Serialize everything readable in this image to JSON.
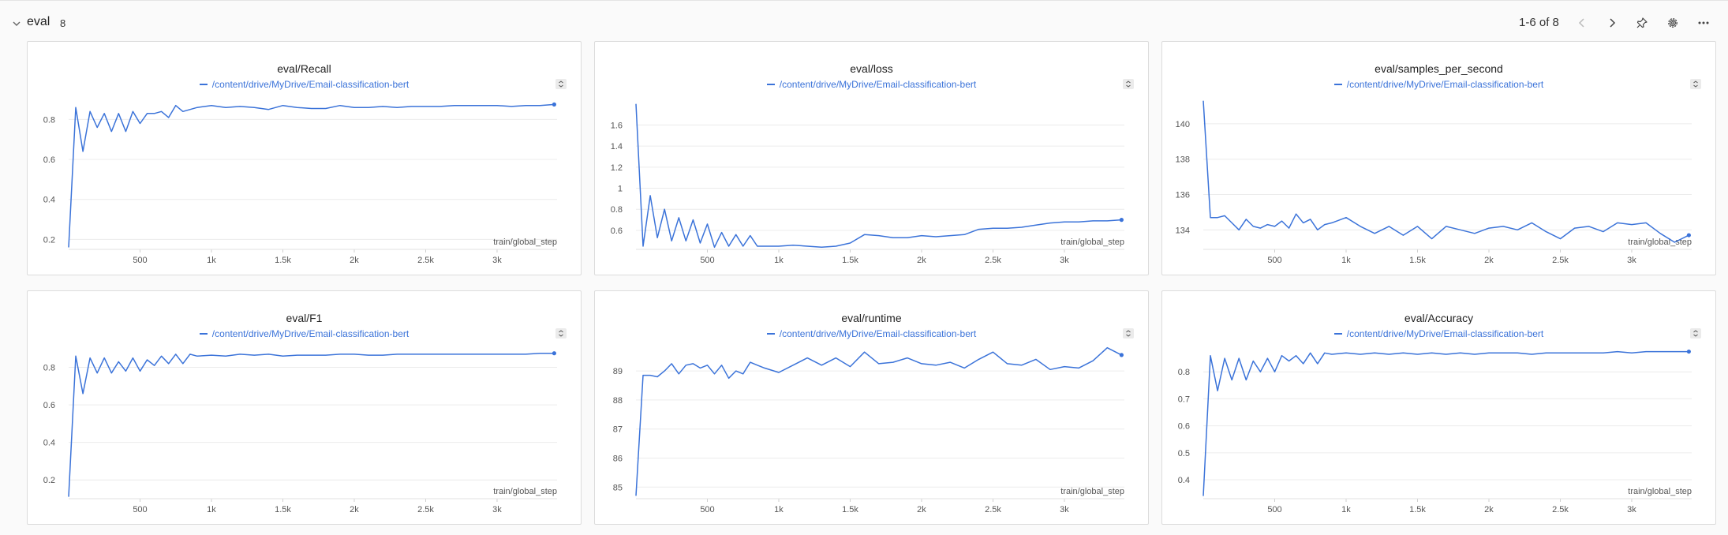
{
  "section": {
    "title": "eval",
    "count": "8",
    "pagination": "1-6 of 8",
    "icons": [
      "chevron-down-icon",
      "chevron-left-icon",
      "chevron-right-icon",
      "pin-icon",
      "gear-icon",
      "more-icon"
    ]
  },
  "colors": {
    "series": "#3b73d9",
    "grid": "#ececec",
    "axis_text": "#555555"
  },
  "panels": [
    {
      "title": "eval/Recall",
      "legend": "/content/drive/MyDrive/Email-classification-bert",
      "xlabel": "train/global_step"
    },
    {
      "title": "eval/loss",
      "legend": "/content/drive/MyDrive/Email-classification-bert",
      "xlabel": "train/global_step"
    },
    {
      "title": "eval/samples_per_second",
      "legend": "/content/drive/MyDrive/Email-classification-bert",
      "xlabel": "train/global_step"
    },
    {
      "title": "eval/F1",
      "legend": "/content/drive/MyDrive/Email-classification-bert",
      "xlabel": "train/global_step"
    },
    {
      "title": "eval/runtime",
      "legend": "/content/drive/MyDrive/Email-classification-bert",
      "xlabel": "train/global_step"
    },
    {
      "title": "eval/Accuracy",
      "legend": "/content/drive/MyDrive/Email-classification-bert",
      "xlabel": "train/global_step"
    }
  ],
  "chart_data": [
    {
      "type": "line",
      "title": "eval/Recall",
      "xlabel": "train/global_step",
      "ylabel": "",
      "xlim": [
        0,
        3420
      ],
      "ylim": [
        0.15,
        0.92
      ],
      "xticks": [
        500,
        1000,
        1500,
        2000,
        2500,
        3000
      ],
      "xtick_labels": [
        "500",
        "1k",
        "1.5k",
        "2k",
        "2.5k",
        "3k"
      ],
      "yticks": [
        0.2,
        0.4,
        0.6,
        0.8
      ],
      "ytick_labels": [
        "0.2",
        "0.4",
        "0.6",
        "0.8"
      ],
      "grid": true,
      "series": [
        {
          "name": "/content/drive/MyDrive/Email-classification-bert",
          "x": [
            0,
            50,
            100,
            150,
            200,
            250,
            300,
            350,
            400,
            450,
            500,
            550,
            600,
            650,
            700,
            750,
            800,
            900,
            1000,
            1100,
            1200,
            1300,
            1400,
            1500,
            1600,
            1700,
            1800,
            1900,
            2000,
            2100,
            2200,
            2300,
            2400,
            2500,
            2600,
            2700,
            2800,
            2900,
            3000,
            3100,
            3200,
            3300,
            3400
          ],
          "y": [
            0.16,
            0.86,
            0.64,
            0.84,
            0.76,
            0.83,
            0.74,
            0.83,
            0.74,
            0.84,
            0.78,
            0.83,
            0.83,
            0.84,
            0.81,
            0.87,
            0.84,
            0.86,
            0.87,
            0.86,
            0.865,
            0.86,
            0.85,
            0.87,
            0.86,
            0.855,
            0.855,
            0.87,
            0.86,
            0.86,
            0.865,
            0.86,
            0.865,
            0.865,
            0.865,
            0.87,
            0.87,
            0.87,
            0.87,
            0.865,
            0.87,
            0.87,
            0.875
          ]
        }
      ]
    },
    {
      "type": "line",
      "title": "eval/loss",
      "xlabel": "train/global_step",
      "ylabel": "",
      "xlim": [
        0,
        3420
      ],
      "ylim": [
        0.42,
        1.88
      ],
      "xticks": [
        500,
        1000,
        1500,
        2000,
        2500,
        3000
      ],
      "xtick_labels": [
        "500",
        "1k",
        "1.5k",
        "2k",
        "2.5k",
        "3k"
      ],
      "yticks": [
        0.6,
        0.8,
        1.0,
        1.2,
        1.4,
        1.6
      ],
      "ytick_labels": [
        "0.6",
        "0.8",
        "1",
        "1.2",
        "1.4",
        "1.6"
      ],
      "grid": true,
      "series": [
        {
          "name": "/content/drive/MyDrive/Email-classification-bert",
          "x": [
            0,
            50,
            100,
            150,
            200,
            250,
            300,
            350,
            400,
            450,
            500,
            550,
            600,
            650,
            700,
            750,
            800,
            850,
            900,
            1000,
            1100,
            1200,
            1300,
            1400,
            1500,
            1600,
            1700,
            1800,
            1900,
            2000,
            2100,
            2200,
            2300,
            2400,
            2500,
            2600,
            2700,
            2800,
            2900,
            3000,
            3100,
            3200,
            3300,
            3400
          ],
          "y": [
            1.8,
            0.45,
            0.93,
            0.53,
            0.8,
            0.5,
            0.72,
            0.5,
            0.7,
            0.48,
            0.66,
            0.44,
            0.58,
            0.45,
            0.56,
            0.45,
            0.55,
            0.45,
            0.45,
            0.45,
            0.46,
            0.45,
            0.44,
            0.45,
            0.48,
            0.56,
            0.55,
            0.53,
            0.53,
            0.55,
            0.54,
            0.55,
            0.56,
            0.61,
            0.62,
            0.62,
            0.63,
            0.65,
            0.67,
            0.68,
            0.68,
            0.69,
            0.69,
            0.7
          ]
        }
      ]
    },
    {
      "type": "line",
      "title": "eval/samples_per_second",
      "xlabel": "train/global_step",
      "ylabel": "",
      "xlim": [
        0,
        3420
      ],
      "ylim": [
        132.9,
        141.6
      ],
      "xticks": [
        500,
        1000,
        1500,
        2000,
        2500,
        3000
      ],
      "xtick_labels": [
        "500",
        "1k",
        "1.5k",
        "2k",
        "2.5k",
        "3k"
      ],
      "yticks": [
        134,
        136,
        138,
        140
      ],
      "ytick_labels": [
        "134",
        "136",
        "138",
        "140"
      ],
      "grid": true,
      "series": [
        {
          "name": "/content/drive/MyDrive/Email-classification-bert",
          "x": [
            0,
            50,
            100,
            150,
            200,
            250,
            300,
            350,
            400,
            450,
            500,
            550,
            600,
            650,
            700,
            750,
            800,
            850,
            900,
            1000,
            1100,
            1200,
            1300,
            1400,
            1500,
            1600,
            1700,
            1800,
            1900,
            2000,
            2100,
            2200,
            2300,
            2400,
            2500,
            2600,
            2700,
            2800,
            2900,
            3000,
            3100,
            3200,
            3300,
            3400
          ],
          "y": [
            141.3,
            134.7,
            134.7,
            134.8,
            134.4,
            134.0,
            134.6,
            134.2,
            134.1,
            134.3,
            134.2,
            134.5,
            134.1,
            134.9,
            134.4,
            134.6,
            134.0,
            134.3,
            134.4,
            134.7,
            134.2,
            133.8,
            134.2,
            133.7,
            134.2,
            133.5,
            134.2,
            134.0,
            133.8,
            134.1,
            134.2,
            134.0,
            134.4,
            133.9,
            133.5,
            134.1,
            134.2,
            133.9,
            134.4,
            134.3,
            134.4,
            133.8,
            133.3,
            133.7
          ]
        }
      ]
    },
    {
      "type": "line",
      "title": "eval/F1",
      "xlabel": "train/global_step",
      "ylabel": "",
      "xlim": [
        0,
        3420
      ],
      "ylim": [
        0.1,
        0.92
      ],
      "xticks": [
        500,
        1000,
        1500,
        2000,
        2500,
        3000
      ],
      "xtick_labels": [
        "500",
        "1k",
        "1.5k",
        "2k",
        "2.5k",
        "3k"
      ],
      "yticks": [
        0.2,
        0.4,
        0.6,
        0.8
      ],
      "ytick_labels": [
        "0.2",
        "0.4",
        "0.6",
        "0.8"
      ],
      "grid": true,
      "series": [
        {
          "name": "/content/drive/MyDrive/Email-classification-bert",
          "x": [
            0,
            50,
            100,
            150,
            200,
            250,
            300,
            350,
            400,
            450,
            500,
            550,
            600,
            650,
            700,
            750,
            800,
            850,
            900,
            1000,
            1100,
            1200,
            1300,
            1400,
            1500,
            1600,
            1700,
            1800,
            1900,
            2000,
            2100,
            2200,
            2300,
            2400,
            2500,
            2600,
            2700,
            2800,
            2900,
            3000,
            3100,
            3200,
            3300,
            3400
          ],
          "y": [
            0.11,
            0.86,
            0.66,
            0.85,
            0.77,
            0.85,
            0.77,
            0.83,
            0.78,
            0.85,
            0.78,
            0.84,
            0.81,
            0.86,
            0.82,
            0.87,
            0.82,
            0.87,
            0.86,
            0.865,
            0.86,
            0.87,
            0.865,
            0.87,
            0.86,
            0.865,
            0.865,
            0.865,
            0.87,
            0.87,
            0.865,
            0.865,
            0.87,
            0.87,
            0.87,
            0.87,
            0.87,
            0.87,
            0.87,
            0.87,
            0.87,
            0.87,
            0.875,
            0.875
          ]
        }
      ]
    },
    {
      "type": "line",
      "title": "eval/runtime",
      "xlabel": "train/global_step",
      "ylabel": "",
      "xlim": [
        0,
        3420
      ],
      "ylim": [
        84.6,
        89.9
      ],
      "xticks": [
        500,
        1000,
        1500,
        2000,
        2500,
        3000
      ],
      "xtick_labels": [
        "500",
        "1k",
        "1.5k",
        "2k",
        "2.5k",
        "3k"
      ],
      "yticks": [
        85,
        86,
        87,
        88,
        89
      ],
      "ytick_labels": [
        "85",
        "86",
        "87",
        "88",
        "89"
      ],
      "grid": true,
      "series": [
        {
          "name": "/content/drive/MyDrive/Email-classification-bert",
          "x": [
            0,
            50,
            100,
            150,
            200,
            250,
            300,
            350,
            400,
            450,
            500,
            550,
            600,
            650,
            700,
            750,
            800,
            850,
            900,
            1000,
            1100,
            1200,
            1300,
            1400,
            1500,
            1600,
            1700,
            1800,
            1900,
            2000,
            2100,
            2200,
            2300,
            2400,
            2500,
            2600,
            2700,
            2800,
            2900,
            3000,
            3100,
            3200,
            3300,
            3400
          ],
          "y": [
            84.7,
            88.85,
            88.85,
            88.8,
            89.0,
            89.25,
            88.9,
            89.2,
            89.25,
            89.1,
            89.2,
            88.9,
            89.2,
            88.75,
            89.0,
            88.9,
            89.3,
            89.2,
            89.1,
            88.95,
            89.2,
            89.45,
            89.2,
            89.45,
            89.15,
            89.65,
            89.25,
            89.3,
            89.45,
            89.25,
            89.2,
            89.3,
            89.1,
            89.4,
            89.65,
            89.25,
            89.2,
            89.4,
            89.05,
            89.15,
            89.1,
            89.35,
            89.8,
            89.55
          ]
        }
      ]
    },
    {
      "type": "line",
      "title": "eval/Accuracy",
      "xlabel": "train/global_step",
      "ylabel": "",
      "xlim": [
        0,
        3420
      ],
      "ylim": [
        0.33,
        0.9
      ],
      "xticks": [
        500,
        1000,
        1500,
        2000,
        2500,
        3000
      ],
      "xtick_labels": [
        "500",
        "1k",
        "1.5k",
        "2k",
        "2.5k",
        "3k"
      ],
      "yticks": [
        0.4,
        0.5,
        0.6,
        0.7,
        0.8
      ],
      "ytick_labels": [
        "0.4",
        "0.5",
        "0.6",
        "0.7",
        "0.8"
      ],
      "grid": true,
      "series": [
        {
          "name": "/content/drive/MyDrive/Email-classification-bert",
          "x": [
            0,
            50,
            100,
            150,
            200,
            250,
            300,
            350,
            400,
            450,
            500,
            550,
            600,
            650,
            700,
            750,
            800,
            850,
            900,
            1000,
            1100,
            1200,
            1300,
            1400,
            1500,
            1600,
            1700,
            1800,
            1900,
            2000,
            2100,
            2200,
            2300,
            2400,
            2500,
            2600,
            2700,
            2800,
            2900,
            3000,
            3100,
            3200,
            3300,
            3400
          ],
          "y": [
            0.34,
            0.86,
            0.73,
            0.85,
            0.77,
            0.85,
            0.77,
            0.84,
            0.8,
            0.85,
            0.8,
            0.86,
            0.84,
            0.86,
            0.83,
            0.87,
            0.83,
            0.87,
            0.865,
            0.87,
            0.865,
            0.87,
            0.865,
            0.87,
            0.865,
            0.87,
            0.865,
            0.87,
            0.865,
            0.87,
            0.87,
            0.87,
            0.865,
            0.87,
            0.87,
            0.87,
            0.87,
            0.87,
            0.875,
            0.87,
            0.875,
            0.875,
            0.875,
            0.875
          ]
        }
      ]
    }
  ]
}
